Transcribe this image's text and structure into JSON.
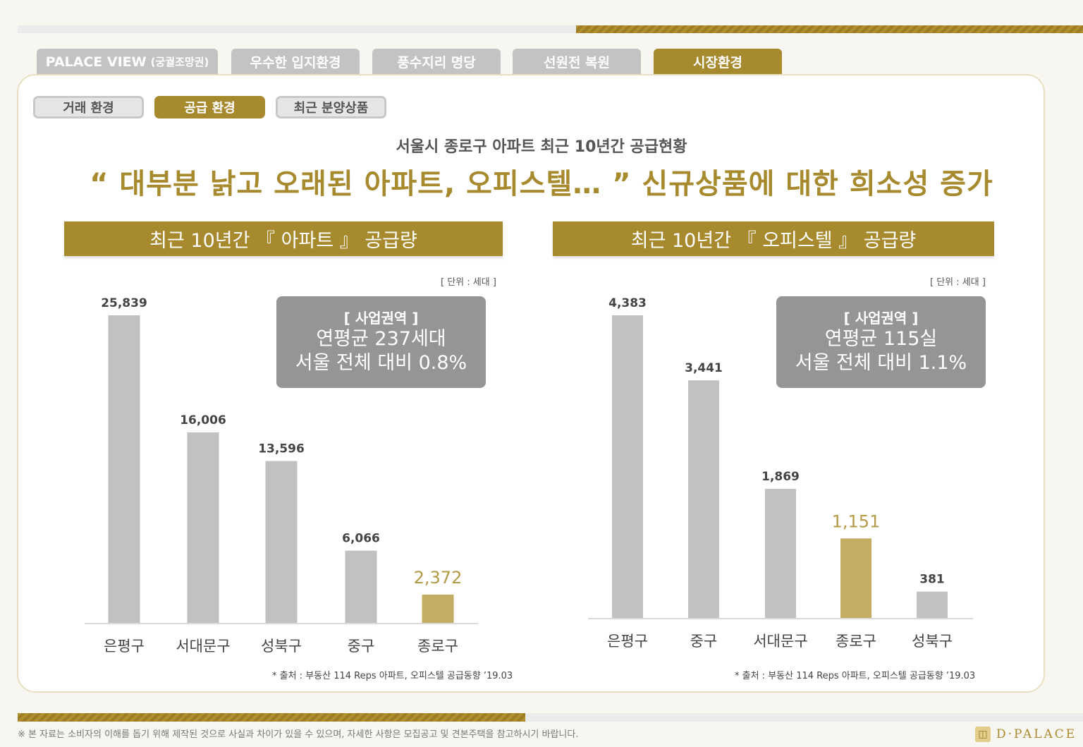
{
  "tabs": [
    {
      "label": "PALACE VIEW",
      "sub": "(궁궐조망권)"
    },
    {
      "label": "우수한 입지환경"
    },
    {
      "label": "풍수지리 명당"
    },
    {
      "label": "선원전 복원"
    },
    {
      "label": "시장환경"
    }
  ],
  "subtabs": [
    "거래 환경",
    "공급 환경",
    "최근 분양상품"
  ],
  "subtitle": "서울시 종로구 아파트 최근 10년간 공급현황",
  "headline": "“ 대부분 낡고 오래된 아파트, 오피스텔… ” 신규상품에 대한 희소성 증가",
  "colors": {
    "gold": "#a88a2e",
    "bar_gray": "#c1c1c1",
    "bar_highlight": "#c4ac62",
    "label_highlight": "#b39a46"
  },
  "chart_data": [
    {
      "type": "bar",
      "title": "최근 10년간 『 아파트 』 공급량",
      "unit_label": "[ 단위 : 세대 ]",
      "categories": [
        "은평구",
        "서대문구",
        "성북구",
        "중구",
        "종로구"
      ],
      "values": [
        25839,
        16006,
        13596,
        6066,
        2372
      ],
      "value_labels": [
        "25,839",
        "16,006",
        "13,596",
        "6,066",
        "2,372"
      ],
      "highlight_index": 4,
      "ylim": [
        0,
        25839
      ],
      "info": {
        "tag": "[ 사업권역 ]",
        "line1": "연평균 237세대",
        "line2": "서울 전체 대비 0.8%"
      },
      "source": "* 출처 : 부동산 114 Reps 아파트, 오피스텔 공급동향 ’19.03"
    },
    {
      "type": "bar",
      "title": "최근 10년간 『 오피스텔 』 공급량",
      "unit_label": "[ 단위 : 세대 ]",
      "categories": [
        "은평구",
        "중구",
        "서대문구",
        "종로구",
        "성북구"
      ],
      "values": [
        4383,
        3441,
        1869,
        1151,
        381
      ],
      "value_labels": [
        "4,383",
        "3,441",
        "1,869",
        "1,151",
        "381"
      ],
      "highlight_index": 3,
      "ylim": [
        0,
        4383
      ],
      "info": {
        "tag": "[ 사업권역 ]",
        "line1": "연평균 115실",
        "line2": "서울 전체 대비 1.1%"
      },
      "source": "* 출처 : 부동산 114 Reps 아파트, 오피스텔 공급동향 ’19.03"
    }
  ],
  "footer": {
    "note": "※ 본 자료는 소비자의 이해를 돕기 위해 제작된 것으로 사실과 차이가 있을 수 있으며, 자세한 사항은 모집공고 및 견본주택을 참고하시기 바랍니다.",
    "logo": "D·PALACE"
  }
}
